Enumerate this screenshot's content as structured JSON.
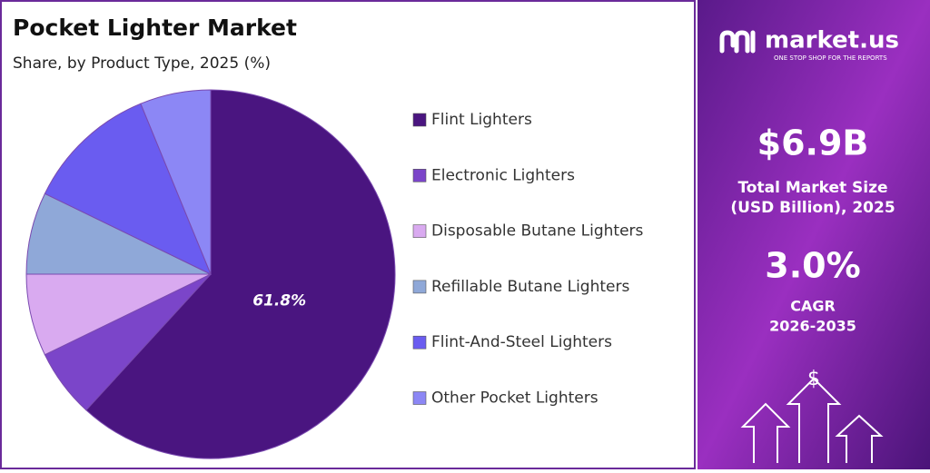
{
  "chart_data": {
    "type": "pie",
    "title": "Pocket Lighter Market",
    "subtitle": "Share, by Product Type, 2025 (%)",
    "categories": [
      "Flint Lighters",
      "Electronic Lighters",
      "Disposable Butane Lighters",
      "Refillable Butane Lighters",
      "Flint-And-Steel Lighters",
      "Other Pocket Lighters"
    ],
    "values": [
      61.8,
      6.0,
      7.2,
      7.2,
      11.6,
      6.2
    ],
    "value_labels": [
      "61.8%",
      null,
      null,
      null,
      null,
      null
    ],
    "colors": [
      "#4a1580",
      "#7b45c9",
      "#d9aaf0",
      "#8fa8d8",
      "#6a5cf0",
      "#8c87f5"
    ],
    "legend": "right"
  },
  "panel": {
    "brand": "market.us",
    "tagline": "ONE STOP SHOP FOR THE REPORTS",
    "market_size": "$6.9B",
    "market_size_label": [
      "Total Market Size",
      "(USD Billion), 2025"
    ],
    "cagr": "3.0%",
    "cagr_label": [
      "CAGR",
      "2026-2035"
    ]
  }
}
